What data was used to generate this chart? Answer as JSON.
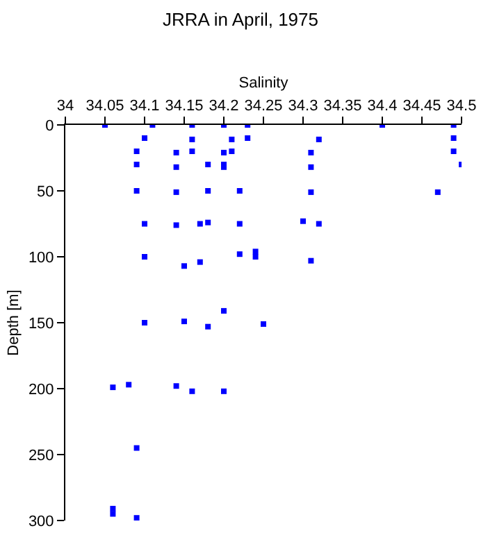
{
  "chart_data": {
    "type": "scatter",
    "title": "JRRA in April, 1975",
    "xlabel": "Salinity",
    "ylabel": "Depth [m]",
    "x": [
      34.05,
      34.11,
      34.16,
      34.2,
      34.23,
      34.4,
      34.49,
      34.1,
      34.16,
      34.21,
      34.23,
      34.32,
      34.49,
      34.09,
      34.14,
      34.16,
      34.2,
      34.21,
      34.31,
      34.49,
      34.09,
      34.14,
      34.18,
      34.2,
      34.2,
      34.31,
      34.5,
      34.09,
      34.14,
      34.18,
      34.22,
      34.31,
      34.47,
      34.1,
      34.14,
      34.17,
      34.18,
      34.22,
      34.3,
      34.32,
      34.1,
      34.15,
      34.17,
      34.22,
      34.24,
      34.24,
      34.31,
      34.1,
      34.15,
      34.18,
      34.2,
      34.25,
      34.06,
      34.08,
      34.14,
      34.16,
      34.2,
      34.09,
      34.06,
      34.06,
      34.09
    ],
    "values": [
      0,
      0,
      0,
      0,
      0,
      0,
      0,
      10,
      11,
      11,
      10,
      11,
      10,
      20,
      21,
      20,
      21,
      20,
      21,
      20,
      30,
      32,
      30,
      30,
      32,
      32,
      30,
      50,
      51,
      50,
      50,
      51,
      51,
      75,
      76,
      75,
      74,
      75,
      73,
      75,
      100,
      107,
      104,
      98,
      96,
      100,
      103,
      150,
      149,
      153,
      141,
      151,
      199,
      197,
      198,
      202,
      202,
      245,
      291,
      295,
      298
    ],
    "color": "#0000ff",
    "marker": "square",
    "xlim": [
      34,
      34.5
    ],
    "xticks": [
      34,
      34.05,
      34.1,
      34.15,
      34.2,
      34.25,
      34.3,
      34.35,
      34.4,
      34.45,
      34.5
    ],
    "ylim": [
      300,
      0
    ],
    "yticks": [
      0,
      50,
      100,
      150,
      200,
      250,
      300
    ],
    "grid": false
  }
}
